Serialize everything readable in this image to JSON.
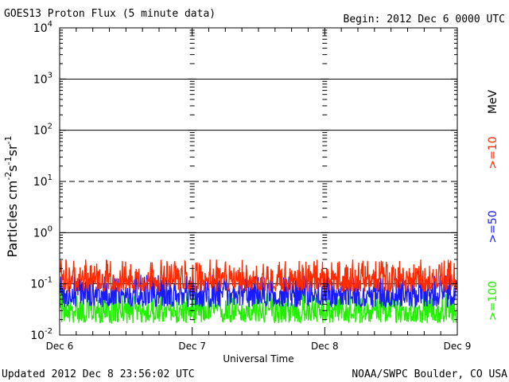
{
  "header": {
    "title": "GOES13 Proton Flux (5 minute data)",
    "begin": "Begin: 2012 Dec 6 0000 UTC"
  },
  "footer": {
    "updated": "Updated 2012 Dec  8 23:56:02 UTC",
    "credit": "NOAA/SWPC Boulder, CO USA"
  },
  "chart_data": {
    "type": "line",
    "title": "GOES13 Proton Flux (5 minute data)",
    "xlabel": "Universal Time",
    "ylabel": "Particles cm⁻²s⁻¹sr⁻¹",
    "ylabel_parts": {
      "base": "Particles cm",
      "e1": "-2",
      "mid1": "s",
      "e2": "-1",
      "mid2": "sr",
      "e3": "-1"
    },
    "y_scale": "log",
    "ylim": [
      0.01,
      10000
    ],
    "xlim": [
      "2012-12-06",
      "2012-12-09"
    ],
    "x_ticks": [
      "Dec 6",
      "Dec 7",
      "Dec 8",
      "Dec 9"
    ],
    "y_ticks": [
      {
        "base": "10",
        "exp": "-2"
      },
      {
        "base": "10",
        "exp": "-1"
      },
      {
        "base": "10",
        "exp": "0"
      },
      {
        "base": "10",
        "exp": "1"
      },
      {
        "base": "10",
        "exp": "2"
      },
      {
        "base": "10",
        "exp": "3"
      },
      {
        "base": "10",
        "exp": "4"
      }
    ],
    "unit": "MeV",
    "grid": true,
    "series": [
      {
        "name": ">=10",
        "color": "#ff2a00",
        "typical_range": [
          0.07,
          0.3
        ],
        "median": 0.12
      },
      {
        "name": ">=50",
        "color": "#1a1aff",
        "typical_range": [
          0.035,
          0.15
        ],
        "median": 0.065
      },
      {
        "name": ">=100",
        "color": "#22ee00",
        "typical_range": [
          0.017,
          0.07
        ],
        "median": 0.03
      }
    ]
  }
}
